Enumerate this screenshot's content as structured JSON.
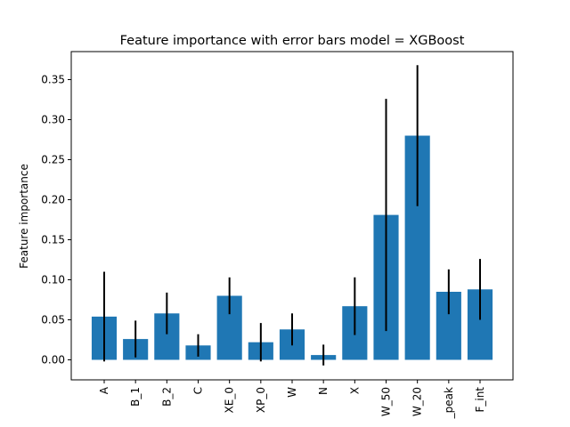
{
  "chart_data": {
    "type": "bar",
    "title": "Feature importance with error bars model = XGBoost",
    "xlabel": "",
    "ylabel": "Feature importance",
    "categories": [
      "A",
      "B_1",
      "B_2",
      "C",
      "XE_0",
      "XP_0",
      "W",
      "N",
      "X",
      "W_50",
      "W_20",
      "_peak",
      "F_int"
    ],
    "values": [
      0.054,
      0.026,
      0.058,
      0.018,
      0.08,
      0.022,
      0.038,
      0.006,
      0.067,
      0.181,
      0.28,
      0.085,
      0.088
    ],
    "errors": [
      0.056,
      0.023,
      0.026,
      0.014,
      0.023,
      0.024,
      0.02,
      0.013,
      0.036,
      0.145,
      0.088,
      0.028,
      0.038
    ],
    "ylim": [
      -0.025,
      0.385
    ],
    "yticks": [
      0.0,
      0.05,
      0.1,
      0.15,
      0.2,
      0.25,
      0.3,
      0.35
    ],
    "ytick_labels": [
      "0.00",
      "0.05",
      "0.10",
      "0.15",
      "0.20",
      "0.25",
      "0.30",
      "0.35"
    ],
    "bar_color": "#1f77b4",
    "error_color": "#000000",
    "grid": false
  }
}
